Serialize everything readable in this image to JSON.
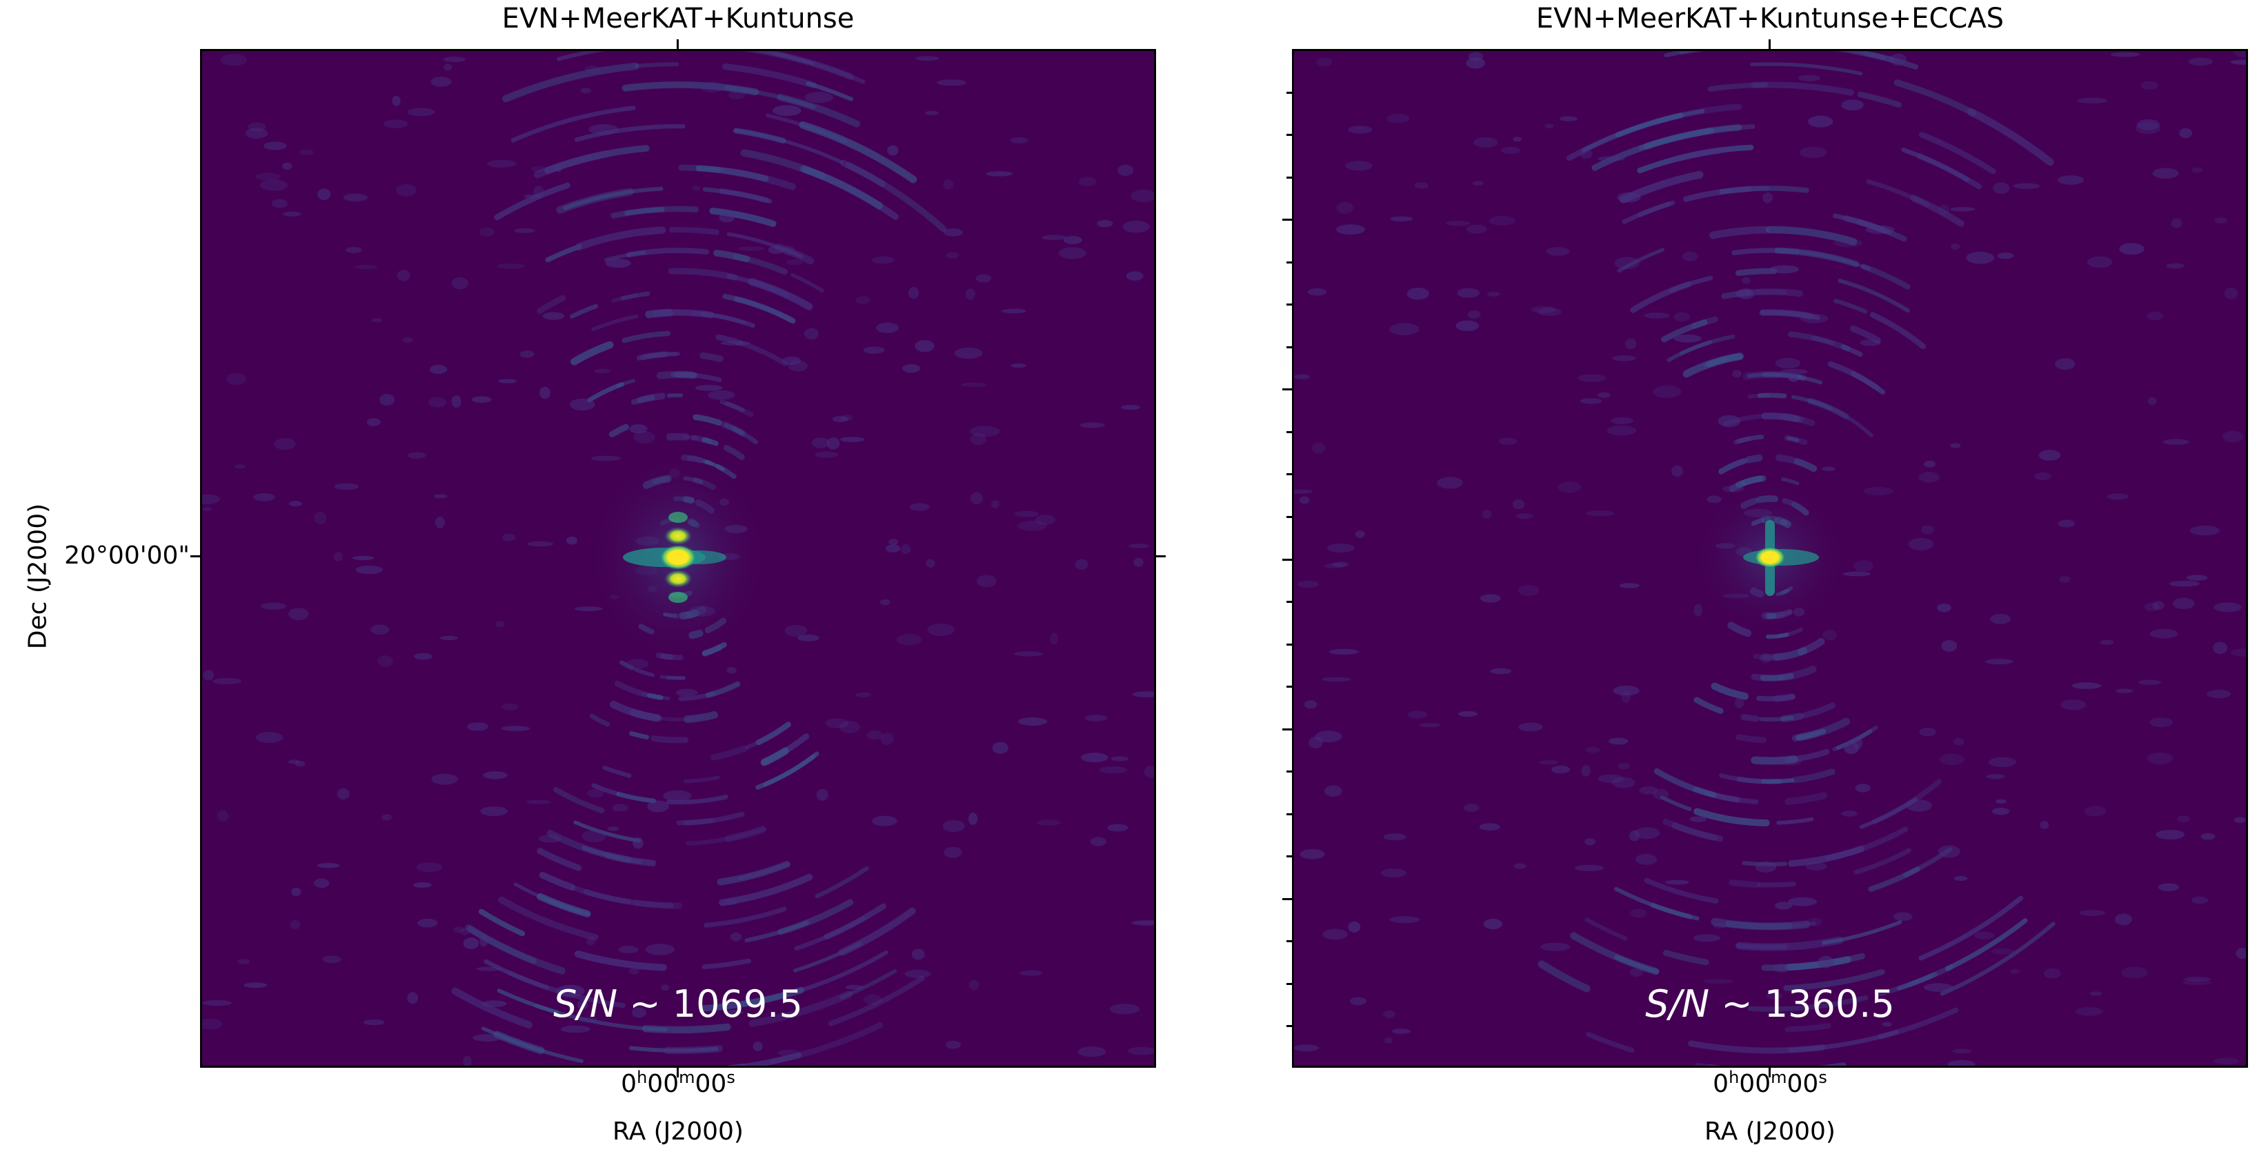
{
  "panels": [
    {
      "title": "EVN+MeerKAT+Kuntunse",
      "sn_label": "S/N",
      "sn_value": "1069.5",
      "ra_tick": "0h00m00s",
      "ra_label": "RA (J2000)"
    },
    {
      "title": "EVN+MeerKAT+Kuntunse+ECCAS",
      "sn_label": "S/N",
      "sn_value": "1360.5",
      "ra_tick": "0h00m00s",
      "ra_label": "RA (J2000)"
    }
  ],
  "dec_tick": "20°00'00\"",
  "dec_label": "Dec (J2000)",
  "colors": {
    "background": "#440154",
    "mid": "#21918c",
    "peak": "#fde725"
  }
}
